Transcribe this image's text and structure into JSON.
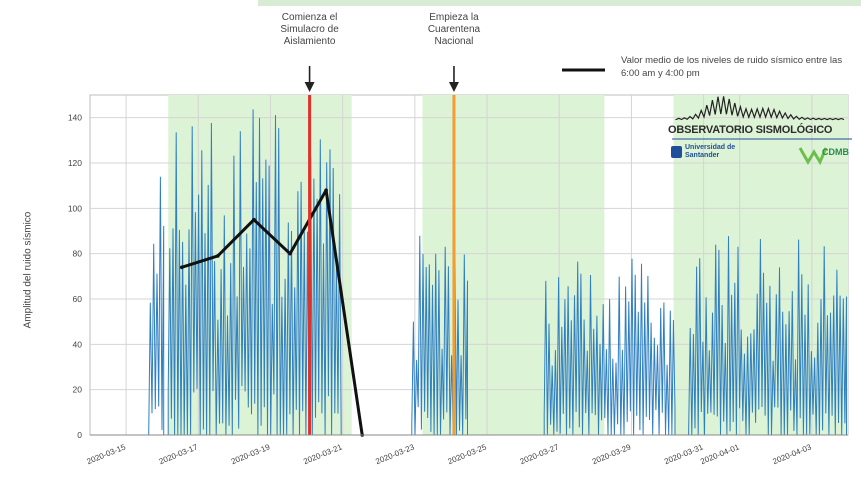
{
  "chart_data": {
    "type": "line",
    "ylabel": "Amplitud del ruido sísmico",
    "ylim": [
      0,
      150
    ],
    "y_ticks": [
      0,
      20,
      40,
      60,
      80,
      100,
      120,
      140
    ],
    "x_ticks": [
      "2020-03-15",
      "2020-03-17",
      "2020-03-19",
      "2020-03-21",
      "2020-03-23",
      "2020-03-25",
      "2020-03-27",
      "2020-03-29",
      "2020-03-31",
      "2020-04-01",
      "2020-04-03"
    ],
    "x_range": [
      "2020-03-14",
      "2020-04-04"
    ],
    "grid": true,
    "shaded_periods": [
      {
        "start": "2020-03-16T04:00",
        "end": "2020-03-21T06:00"
      },
      {
        "start": "2020-03-23T05:00",
        "end": "2020-03-28T06:00"
      },
      {
        "start": "2020-03-30T04:00",
        "end": "2020-04-04T00:00"
      }
    ],
    "events": [
      {
        "date": "2020-03-20T02:00",
        "label": "Comienza el Simulacro de Aislamiento",
        "color": "#e0312b"
      },
      {
        "date": "2020-03-24T02:00",
        "label": "Empieza la Cuarentena Nacional",
        "color": "#f39c32"
      }
    ],
    "series": [
      {
        "name": "Valor medio de los niveles de ruido sísmico entre las 6:00 am y 4:00 pm",
        "color": "#111111",
        "x": [
          "2020-03-16T13:00",
          "2020-03-17T13:00",
          "2020-03-18T13:00",
          "2020-03-19T13:00",
          "2020-03-20T13:00",
          "2020-03-21T13:00"
        ],
        "y": [
          74,
          79,
          95,
          80,
          108,
          0
        ]
      },
      {
        "name": "",
        "color": "#2f7fc1",
        "segments": [
          {
            "start": "2020-03-15T15:00",
            "end": "2020-03-16T01:00",
            "peak": 120
          },
          {
            "start": "2020-03-16T04:00",
            "end": "2020-03-20T23:00",
            "peak": 145
          },
          {
            "start": "2020-03-22T22:00",
            "end": "2020-03-24T11:00",
            "peak": 91
          },
          {
            "start": "2020-03-26T14:00",
            "end": "2020-03-30T05:00",
            "peak": 78
          },
          {
            "start": "2020-03-30T14:00",
            "end": "2020-04-03T23:00",
            "peak": 88
          }
        ]
      }
    ]
  },
  "logo": {
    "title": "OBSERVATORIO SISMOLÓGICO",
    "university": "Universidad de Santander",
    "partner": "CDMB"
  }
}
